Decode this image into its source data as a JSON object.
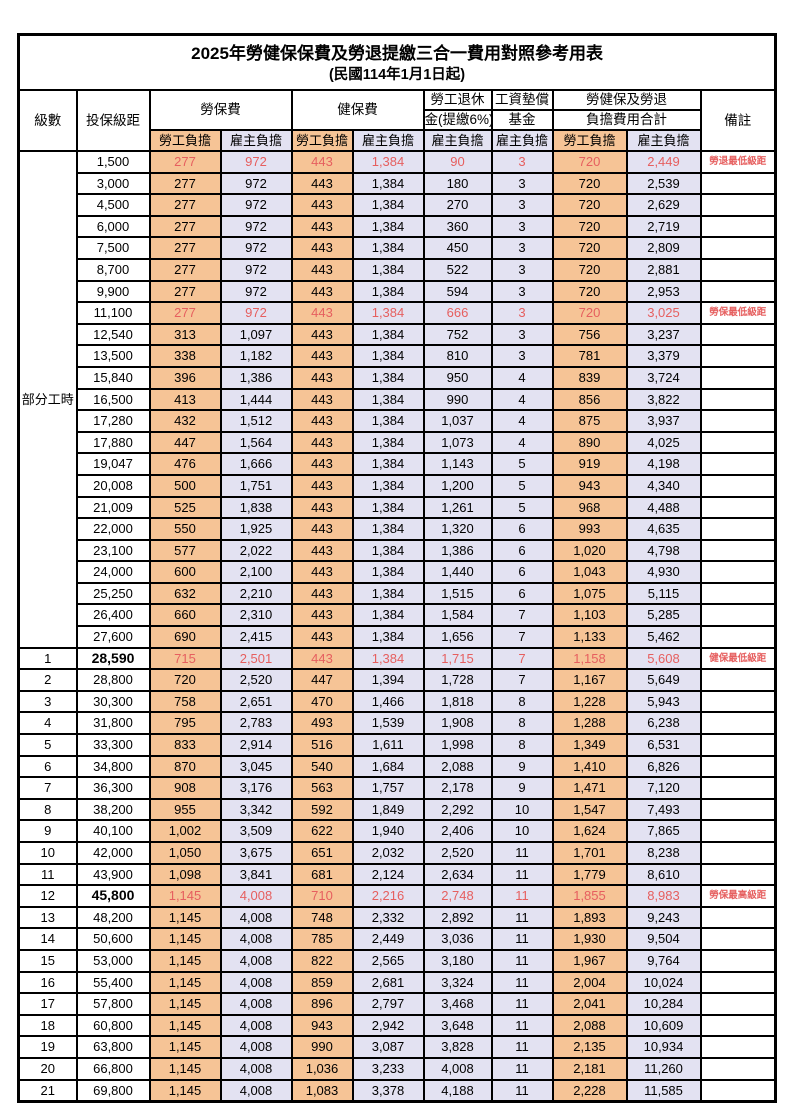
{
  "title": "2025年勞健保保費及勞退提繳三合一費用對照參考用表",
  "subtitle": "(民國114年1月1日起)",
  "colors": {
    "employee_bg": "#f6c496",
    "employer_bg": "#e3e2f2",
    "highlight_red": "#e65f5f",
    "border": "#000000"
  },
  "header": {
    "level": "級數",
    "salary": "投保級距",
    "labor_ins": "勞保費",
    "health_ins": "健保費",
    "pension_line1": "勞工退休",
    "pension_line2": "金(提繳6%)",
    "fund_line1": "工資墊償",
    "fund_line2": "基金",
    "total_line1": "勞健保及勞退",
    "total_line2": "負擔費用合計",
    "remark": "備註",
    "employee": "勞工負擔",
    "employer": "雇主負擔"
  },
  "part_time_label": "部分工時",
  "part_time_rowspan": 23,
  "rows": [
    {
      "level": "",
      "salary": "1,500",
      "v": [
        "277",
        "972",
        "443",
        "1,384",
        "90",
        "3",
        "720",
        "2,449"
      ],
      "remark": "勞退最低級距",
      "red": true
    },
    {
      "level": "",
      "salary": "3,000",
      "v": [
        "277",
        "972",
        "443",
        "1,384",
        "180",
        "3",
        "720",
        "2,539"
      ],
      "remark": ""
    },
    {
      "level": "",
      "salary": "4,500",
      "v": [
        "277",
        "972",
        "443",
        "1,384",
        "270",
        "3",
        "720",
        "2,629"
      ],
      "remark": ""
    },
    {
      "level": "",
      "salary": "6,000",
      "v": [
        "277",
        "972",
        "443",
        "1,384",
        "360",
        "3",
        "720",
        "2,719"
      ],
      "remark": ""
    },
    {
      "level": "",
      "salary": "7,500",
      "v": [
        "277",
        "972",
        "443",
        "1,384",
        "450",
        "3",
        "720",
        "2,809"
      ],
      "remark": ""
    },
    {
      "level": "",
      "salary": "8,700",
      "v": [
        "277",
        "972",
        "443",
        "1,384",
        "522",
        "3",
        "720",
        "2,881"
      ],
      "remark": ""
    },
    {
      "level": "",
      "salary": "9,900",
      "v": [
        "277",
        "972",
        "443",
        "1,384",
        "594",
        "3",
        "720",
        "2,953"
      ],
      "remark": ""
    },
    {
      "level": "",
      "salary": "11,100",
      "v": [
        "277",
        "972",
        "443",
        "1,384",
        "666",
        "3",
        "720",
        "3,025"
      ],
      "remark": "勞保最低級距",
      "red": true
    },
    {
      "level": "",
      "salary": "12,540",
      "v": [
        "313",
        "1,097",
        "443",
        "1,384",
        "752",
        "3",
        "756",
        "3,237"
      ],
      "remark": ""
    },
    {
      "level": "",
      "salary": "13,500",
      "v": [
        "338",
        "1,182",
        "443",
        "1,384",
        "810",
        "3",
        "781",
        "3,379"
      ],
      "remark": ""
    },
    {
      "level": "",
      "salary": "15,840",
      "v": [
        "396",
        "1,386",
        "443",
        "1,384",
        "950",
        "4",
        "839",
        "3,724"
      ],
      "remark": ""
    },
    {
      "level": "",
      "salary": "16,500",
      "v": [
        "413",
        "1,444",
        "443",
        "1,384",
        "990",
        "4",
        "856",
        "3,822"
      ],
      "remark": ""
    },
    {
      "level": "",
      "salary": "17,280",
      "v": [
        "432",
        "1,512",
        "443",
        "1,384",
        "1,037",
        "4",
        "875",
        "3,937"
      ],
      "remark": ""
    },
    {
      "level": "",
      "salary": "17,880",
      "v": [
        "447",
        "1,564",
        "443",
        "1,384",
        "1,073",
        "4",
        "890",
        "4,025"
      ],
      "remark": ""
    },
    {
      "level": "",
      "salary": "19,047",
      "v": [
        "476",
        "1,666",
        "443",
        "1,384",
        "1,143",
        "5",
        "919",
        "4,198"
      ],
      "remark": ""
    },
    {
      "level": "",
      "salary": "20,008",
      "v": [
        "500",
        "1,751",
        "443",
        "1,384",
        "1,200",
        "5",
        "943",
        "4,340"
      ],
      "remark": ""
    },
    {
      "level": "",
      "salary": "21,009",
      "v": [
        "525",
        "1,838",
        "443",
        "1,384",
        "1,261",
        "5",
        "968",
        "4,488"
      ],
      "remark": ""
    },
    {
      "level": "",
      "salary": "22,000",
      "v": [
        "550",
        "1,925",
        "443",
        "1,384",
        "1,320",
        "6",
        "993",
        "4,635"
      ],
      "remark": ""
    },
    {
      "level": "",
      "salary": "23,100",
      "v": [
        "577",
        "2,022",
        "443",
        "1,384",
        "1,386",
        "6",
        "1,020",
        "4,798"
      ],
      "remark": ""
    },
    {
      "level": "",
      "salary": "24,000",
      "v": [
        "600",
        "2,100",
        "443",
        "1,384",
        "1,440",
        "6",
        "1,043",
        "4,930"
      ],
      "remark": ""
    },
    {
      "level": "",
      "salary": "25,250",
      "v": [
        "632",
        "2,210",
        "443",
        "1,384",
        "1,515",
        "6",
        "1,075",
        "5,115"
      ],
      "remark": ""
    },
    {
      "level": "",
      "salary": "26,400",
      "v": [
        "660",
        "2,310",
        "443",
        "1,384",
        "1,584",
        "7",
        "1,103",
        "5,285"
      ],
      "remark": ""
    },
    {
      "level": "",
      "salary": "27,600",
      "v": [
        "690",
        "2,415",
        "443",
        "1,384",
        "1,656",
        "7",
        "1,133",
        "5,462"
      ],
      "remark": ""
    },
    {
      "level": "1",
      "salary": "28,590",
      "v": [
        "715",
        "2,501",
        "443",
        "1,384",
        "1,715",
        "7",
        "1,158",
        "5,608"
      ],
      "remark": "健保最低級距",
      "red": true,
      "salary_bold": true
    },
    {
      "level": "2",
      "salary": "28,800",
      "v": [
        "720",
        "2,520",
        "447",
        "1,394",
        "1,728",
        "7",
        "1,167",
        "5,649"
      ],
      "remark": ""
    },
    {
      "level": "3",
      "salary": "30,300",
      "v": [
        "758",
        "2,651",
        "470",
        "1,466",
        "1,818",
        "8",
        "1,228",
        "5,943"
      ],
      "remark": ""
    },
    {
      "level": "4",
      "salary": "31,800",
      "v": [
        "795",
        "2,783",
        "493",
        "1,539",
        "1,908",
        "8",
        "1,288",
        "6,238"
      ],
      "remark": ""
    },
    {
      "level": "5",
      "salary": "33,300",
      "v": [
        "833",
        "2,914",
        "516",
        "1,611",
        "1,998",
        "8",
        "1,349",
        "6,531"
      ],
      "remark": ""
    },
    {
      "level": "6",
      "salary": "34,800",
      "v": [
        "870",
        "3,045",
        "540",
        "1,684",
        "2,088",
        "9",
        "1,410",
        "6,826"
      ],
      "remark": ""
    },
    {
      "level": "7",
      "salary": "36,300",
      "v": [
        "908",
        "3,176",
        "563",
        "1,757",
        "2,178",
        "9",
        "1,471",
        "7,120"
      ],
      "remark": ""
    },
    {
      "level": "8",
      "salary": "38,200",
      "v": [
        "955",
        "3,342",
        "592",
        "1,849",
        "2,292",
        "10",
        "1,547",
        "7,493"
      ],
      "remark": ""
    },
    {
      "level": "9",
      "salary": "40,100",
      "v": [
        "1,002",
        "3,509",
        "622",
        "1,940",
        "2,406",
        "10",
        "1,624",
        "7,865"
      ],
      "remark": ""
    },
    {
      "level": "10",
      "salary": "42,000",
      "v": [
        "1,050",
        "3,675",
        "651",
        "2,032",
        "2,520",
        "11",
        "1,701",
        "8,238"
      ],
      "remark": ""
    },
    {
      "level": "11",
      "salary": "43,900",
      "v": [
        "1,098",
        "3,841",
        "681",
        "2,124",
        "2,634",
        "11",
        "1,779",
        "8,610"
      ],
      "remark": ""
    },
    {
      "level": "12",
      "salary": "45,800",
      "v": [
        "1,145",
        "4,008",
        "710",
        "2,216",
        "2,748",
        "11",
        "1,855",
        "8,983"
      ],
      "remark": "勞保最高級距",
      "red": true,
      "salary_bold": true
    },
    {
      "level": "13",
      "salary": "48,200",
      "v": [
        "1,145",
        "4,008",
        "748",
        "2,332",
        "2,892",
        "11",
        "1,893",
        "9,243"
      ],
      "remark": ""
    },
    {
      "level": "14",
      "salary": "50,600",
      "v": [
        "1,145",
        "4,008",
        "785",
        "2,449",
        "3,036",
        "11",
        "1,930",
        "9,504"
      ],
      "remark": ""
    },
    {
      "level": "15",
      "salary": "53,000",
      "v": [
        "1,145",
        "4,008",
        "822",
        "2,565",
        "3,180",
        "11",
        "1,967",
        "9,764"
      ],
      "remark": ""
    },
    {
      "level": "16",
      "salary": "55,400",
      "v": [
        "1,145",
        "4,008",
        "859",
        "2,681",
        "3,324",
        "11",
        "2,004",
        "10,024"
      ],
      "remark": ""
    },
    {
      "level": "17",
      "salary": "57,800",
      "v": [
        "1,145",
        "4,008",
        "896",
        "2,797",
        "3,468",
        "11",
        "2,041",
        "10,284"
      ],
      "remark": ""
    },
    {
      "level": "18",
      "salary": "60,800",
      "v": [
        "1,145",
        "4,008",
        "943",
        "2,942",
        "3,648",
        "11",
        "2,088",
        "10,609"
      ],
      "remark": ""
    },
    {
      "level": "19",
      "salary": "63,800",
      "v": [
        "1,145",
        "4,008",
        "990",
        "3,087",
        "3,828",
        "11",
        "2,135",
        "10,934"
      ],
      "remark": ""
    },
    {
      "level": "20",
      "salary": "66,800",
      "v": [
        "1,145",
        "4,008",
        "1,036",
        "3,233",
        "4,008",
        "11",
        "2,181",
        "11,260"
      ],
      "remark": ""
    },
    {
      "level": "21",
      "salary": "69,800",
      "v": [
        "1,145",
        "4,008",
        "1,083",
        "3,378",
        "4,188",
        "11",
        "2,228",
        "11,585"
      ],
      "remark": ""
    }
  ]
}
